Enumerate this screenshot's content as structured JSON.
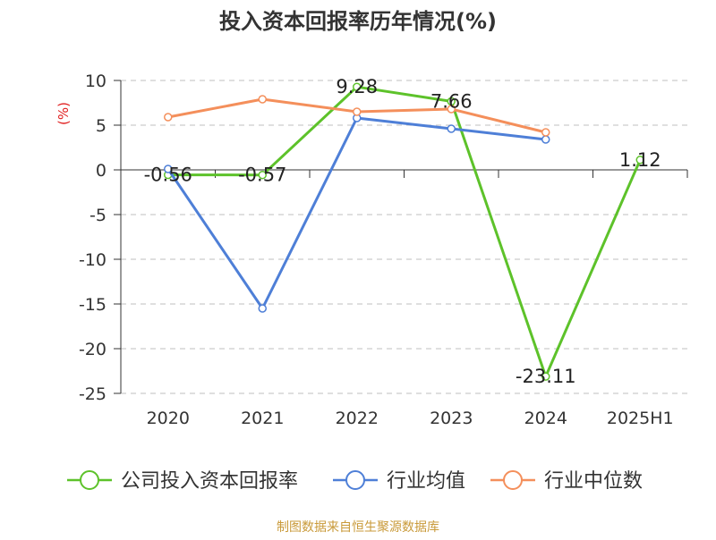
{
  "chart_data": {
    "type": "line",
    "title": "投入资本回报率历年情况(%)",
    "ylabel": "(%)",
    "xlabel": "",
    "categories": [
      "2020",
      "2021",
      "2022",
      "2023",
      "2024",
      "2025H1"
    ],
    "ylim": [
      -25,
      10
    ],
    "yticks": [
      10,
      5,
      0,
      -5,
      -10,
      -15,
      -20,
      -25
    ],
    "grid": true,
    "legend_position": "bottom",
    "series": [
      {
        "name": "公司投入资本回报率",
        "color": "#5dc22a",
        "values": [
          -0.56,
          -0.57,
          9.28,
          7.66,
          -23.11,
          1.12
        ],
        "labels": [
          "-0.56",
          "-0.57",
          "9.28",
          "7.66",
          "-23.11",
          "1.12"
        ]
      },
      {
        "name": "行业均值",
        "color": "#4e7fd7",
        "values": [
          0.1,
          -15.5,
          5.8,
          4.6,
          3.4,
          null
        ]
      },
      {
        "name": "行业中位数",
        "color": "#f48f5b",
        "values": [
          5.9,
          7.9,
          6.5,
          6.8,
          4.2,
          null
        ]
      }
    ]
  },
  "source": "制图数据来自恒生聚源数据库"
}
